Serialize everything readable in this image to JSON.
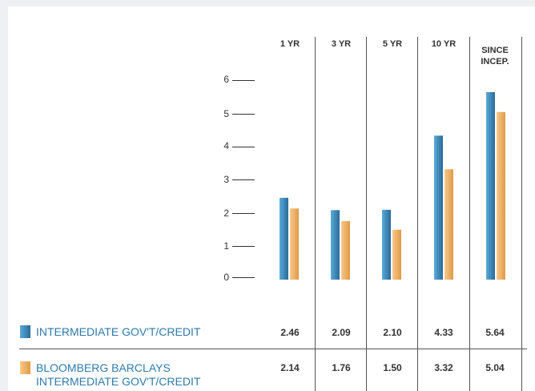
{
  "colors": {
    "series1_light": "#4d9ecf",
    "series1_dark": "#2e6f9e",
    "series2_light": "#f5bd74",
    "series2_dark": "#e39d4b",
    "legend_text": "#2f7aa8"
  },
  "chart_data": {
    "type": "bar",
    "categories": [
      "1 YR",
      "3 YR",
      "5 YR",
      "10 YR",
      "SINCE INCEP."
    ],
    "series": [
      {
        "name": "INTERMEDIATE GOV'T/CREDIT",
        "values": [
          2.46,
          2.09,
          2.1,
          4.33,
          5.64
        ]
      },
      {
        "name": "BLOOMBERG BARCLAYS INTERMEDIATE GOV'T/CREDIT",
        "values": [
          2.14,
          1.76,
          1.5,
          3.32,
          5.04
        ]
      }
    ],
    "yticks": [
      "0",
      "1",
      "2",
      "3",
      "4",
      "5",
      "6"
    ],
    "ylim": [
      0,
      6
    ],
    "grid": false,
    "legend_position": "bottom-left"
  },
  "table": {
    "row1_values": [
      "2.46",
      "2.09",
      "2.10",
      "4.33",
      "5.64"
    ],
    "row2_values": [
      "2.14",
      "1.76",
      "1.50",
      "3.32",
      "5.04"
    ],
    "row1_label": "INTERMEDIATE GOV'T/CREDIT",
    "row2_label_line1": "BLOOMBERG BARCLAYS",
    "row2_label_line2": "INTERMEDIATE GOV'T/CREDIT"
  }
}
